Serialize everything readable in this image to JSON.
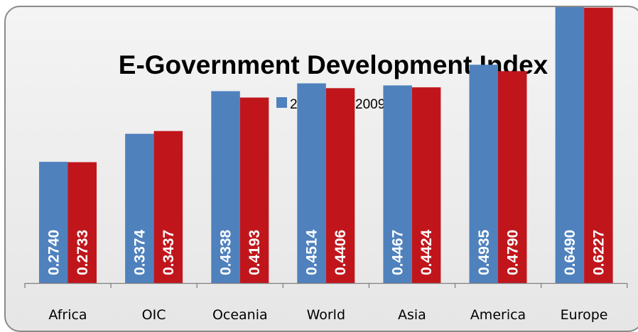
{
  "chart_data": {
    "type": "bar",
    "title": "E-Government Development Index",
    "categories": [
      "Africa",
      "OIC",
      "Oceania",
      "World",
      "Asia",
      "America",
      "Europe"
    ],
    "series": [
      {
        "name": "2007",
        "color": "#4f81bd",
        "values": [
          0.274,
          0.3374,
          0.4338,
          0.4514,
          0.4467,
          0.4935,
          0.649
        ],
        "labels": [
          "0.2740",
          "0.3374",
          "0.4338",
          "0.4514",
          "0.4467",
          "0.4935",
          "0.6490"
        ]
      },
      {
        "name": "2009",
        "color": "#c0161b",
        "values": [
          0.2733,
          0.3437,
          0.4193,
          0.4406,
          0.4424,
          0.479,
          0.6227
        ],
        "labels": [
          "0.2733",
          "0.3437",
          "0.4193",
          "0.4406",
          "0.4424",
          "0.4790",
          "0.6227"
        ]
      }
    ],
    "ylim": [
      0,
      0.7
    ],
    "xlabel": "",
    "ylabel": "",
    "grid": false,
    "legend": "top-center"
  }
}
